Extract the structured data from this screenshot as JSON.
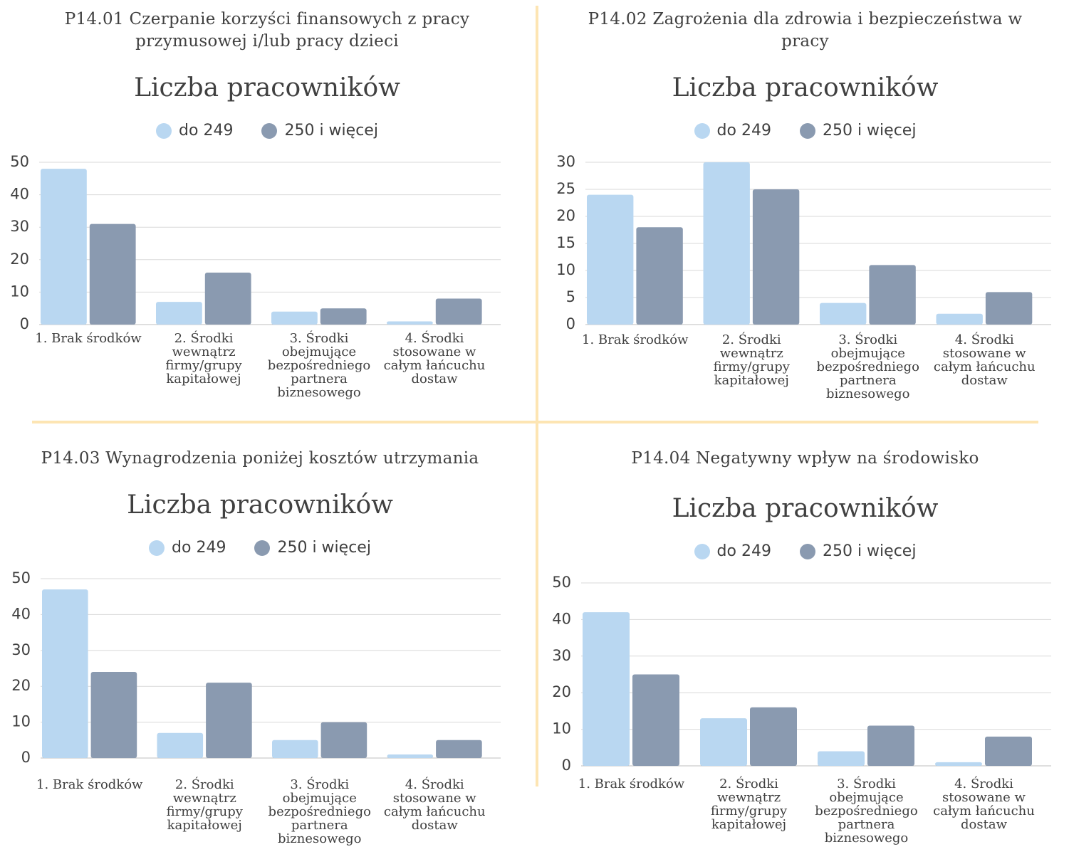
{
  "chart_data": [
    {
      "type": "bar",
      "heading": "P14.01 Czerpanie korzyści finansowych z pracy przymusowej i/lub pracy dzieci",
      "title": "Liczba pracowników",
      "categories": [
        "1. Brak środków",
        "2. Środki wewnątrz firmy/grupy kapitałowej",
        "3. Środki obejmujące bezpośredniego partnera biznesowego",
        "4. Środki stosowane w całym łańcuchu dostaw"
      ],
      "series": [
        {
          "name": "do 249",
          "color": "#b9d7f1",
          "values": [
            48,
            7,
            4,
            1
          ]
        },
        {
          "name": "250 i więcej",
          "color": "#8a9ab0",
          "values": [
            31,
            16,
            5,
            8
          ]
        }
      ],
      "ylim": [
        0,
        50
      ],
      "yticks": [
        0,
        10,
        20,
        30,
        40,
        50
      ],
      "grid": true
    },
    {
      "type": "bar",
      "heading": "P14.02 Zagrożenia dla zdrowia i bezpieczeństwa w pracy",
      "title": "Liczba pracowników",
      "categories": [
        "1. Brak środków",
        "2. Środki wewnątrz firmy/grupy kapitałowej",
        "3. Środki obejmujące bezpośredniego partnera biznesowego",
        "4. Środki stosowane w całym łańcuchu dostaw"
      ],
      "series": [
        {
          "name": "do 249",
          "color": "#b9d7f1",
          "values": [
            24,
            30,
            4,
            2
          ]
        },
        {
          "name": "250 i więcej",
          "color": "#8a9ab0",
          "values": [
            18,
            25,
            11,
            6
          ]
        }
      ],
      "ylim": [
        0,
        30
      ],
      "yticks": [
        0,
        5,
        10,
        15,
        20,
        25,
        30
      ],
      "grid": true
    },
    {
      "type": "bar",
      "heading": "P14.03 Wynagrodzenia poniżej kosztów utrzymania",
      "title": "Liczba pracowników",
      "categories": [
        "1. Brak środków",
        "2. Środki wewnątrz firmy/grupy kapitałowej",
        "3. Środki obejmujące bezpośredniego partnera biznesowego",
        "4. Środki stosowane w całym łańcuchu dostaw"
      ],
      "series": [
        {
          "name": "do 249",
          "color": "#b9d7f1",
          "values": [
            47,
            7,
            5,
            1
          ]
        },
        {
          "name": "250 i więcej",
          "color": "#8a9ab0",
          "values": [
            24,
            21,
            10,
            5
          ]
        }
      ],
      "ylim": [
        0,
        50
      ],
      "yticks": [
        0,
        10,
        20,
        30,
        40,
        50
      ],
      "grid": true
    },
    {
      "type": "bar",
      "heading": "P14.04 Negatywny wpływ na środowisko",
      "title": "Liczba pracowników",
      "categories": [
        "1. Brak środków",
        "2. Środki wewnątrz firmy/grupy kapitałowej",
        "3. Środki obejmujące bezpośredniego partnera biznesowego",
        "4. Środki stosowane w całym łańcuchu dostaw"
      ],
      "series": [
        {
          "name": "do 249",
          "color": "#b9d7f1",
          "values": [
            42,
            13,
            4,
            1
          ]
        },
        {
          "name": "250 i więcej",
          "color": "#8a9ab0",
          "values": [
            25,
            16,
            11,
            8
          ]
        }
      ],
      "ylim": [
        0,
        50
      ],
      "yticks": [
        0,
        10,
        20,
        30,
        40,
        50
      ],
      "grid": true
    }
  ]
}
